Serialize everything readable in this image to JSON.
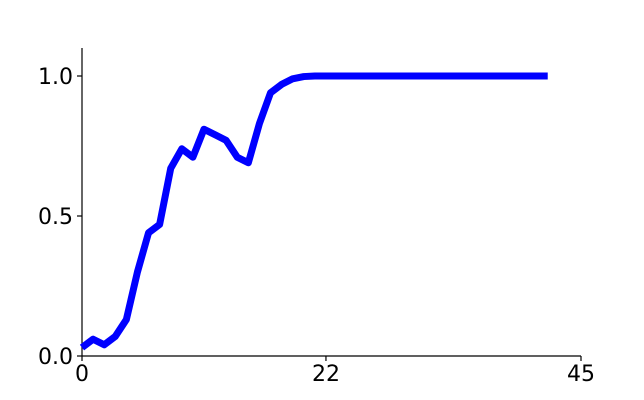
{
  "chart_data": {
    "type": "line",
    "title": "",
    "xlabel": "",
    "ylabel": "",
    "xlim": [
      0,
      45
    ],
    "ylim": [
      0,
      1.1
    ],
    "x_ticks": [
      0,
      22,
      45
    ],
    "x_tick_labels": [
      "0",
      "22",
      "45"
    ],
    "y_ticks": [
      0,
      0.5,
      1
    ],
    "y_tick_labels": [
      "0.0",
      "0.5",
      "1.0"
    ],
    "grid": false,
    "legend": "none",
    "color": "#0000ff",
    "series": [
      {
        "x": [
          0,
          1,
          2,
          3,
          4,
          5,
          6,
          7,
          8,
          9,
          10,
          11,
          12,
          13,
          14,
          15,
          16,
          17,
          18,
          19,
          20,
          21,
          22,
          23,
          24,
          25,
          26,
          27,
          28,
          29,
          30,
          31,
          32,
          33,
          34,
          35,
          36,
          37,
          38,
          39,
          40,
          41,
          42
        ],
        "y": [
          0.03,
          0.06,
          0.04,
          0.07,
          0.13,
          0.3,
          0.44,
          0.47,
          0.67,
          0.74,
          0.71,
          0.81,
          0.79,
          0.77,
          0.71,
          0.69,
          0.83,
          0.94,
          0.97,
          0.99,
          0.998,
          1.0,
          1.0,
          1.0,
          1.0,
          1.0,
          1.0,
          1.0,
          1.0,
          1.0,
          1.0,
          1.0,
          1.0,
          1.0,
          1.0,
          1.0,
          1.0,
          1.0,
          1.0,
          1.0,
          1.0,
          1.0,
          1.0
        ]
      }
    ]
  }
}
